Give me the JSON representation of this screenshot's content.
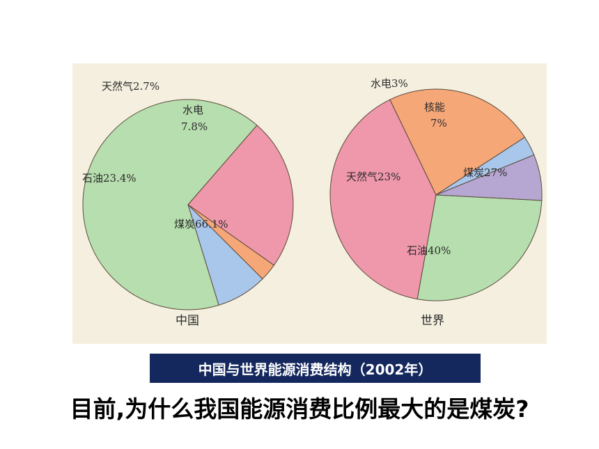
{
  "chart_data": [
    {
      "type": "pie",
      "title": "中国",
      "slices": [
        {
          "label": "煤炭66.1%",
          "value": 66.1,
          "color": "#b7deae"
        },
        {
          "label": "石油23.4%",
          "value": 23.4,
          "color": "#ef97ab"
        },
        {
          "label": "天然气2.7%",
          "value": 2.7,
          "color": "#f6a778"
        },
        {
          "label": "水电7.8%",
          "value": 7.8,
          "color": "#a9c6eb"
        }
      ]
    },
    {
      "type": "pie",
      "title": "世界",
      "slices": [
        {
          "label": "煤炭27%",
          "value": 27,
          "color": "#b7deae"
        },
        {
          "label": "石油40%",
          "value": 40,
          "color": "#ef97ab"
        },
        {
          "label": "天然气23%",
          "value": 23,
          "color": "#f6a778"
        },
        {
          "label": "水电3%",
          "value": 3,
          "color": "#a9c6eb"
        },
        {
          "label": "核能7%",
          "value": 7,
          "color": "#b5a6d2"
        }
      ]
    }
  ],
  "caption": "中国与世界能源消费结构（2002年）",
  "question": "目前,为什么我国能源消费比例最大的是煤炭?"
}
